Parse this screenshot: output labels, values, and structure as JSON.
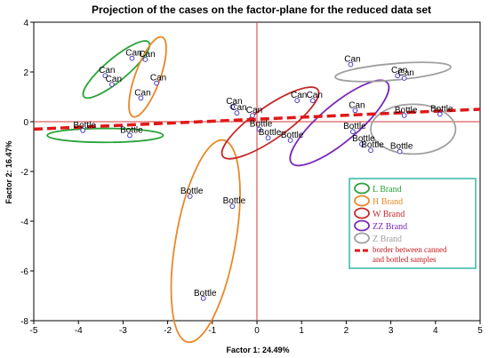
{
  "chart_data": {
    "type": "scatter",
    "title": "Projection of the cases on the factor-plane for the reduced data set",
    "xlabel": "Factor 1: 24.49%",
    "ylabel": "Factor 2: 16.47%",
    "xlim": [
      -5,
      5
    ],
    "ylim": [
      -8,
      4
    ],
    "x_ticks": [
      -5,
      -4,
      -3,
      -2,
      -1,
      0,
      1,
      2,
      3,
      4,
      5
    ],
    "y_ticks": [
      -8,
      -6,
      -4,
      -2,
      0,
      2,
      4
    ],
    "x_tick_labels": [
      "-5",
      "-4",
      "-3",
      "-2",
      "-1",
      "0",
      "1",
      "2",
      "3",
      "4",
      "5"
    ],
    "y_tick_labels": [
      "-8",
      "-6",
      "-4",
      "-2",
      "0",
      "2",
      "4"
    ],
    "grid": false,
    "zero_lines": {
      "x": 0,
      "y": 0,
      "color": "#d43a3a"
    },
    "point_color": "#4a3ec4",
    "series": [
      {
        "label": "L Brand",
        "color": "#2aa33a",
        "points": [
          {
            "x": -3.4,
            "y": 1.85,
            "label": "Can"
          },
          {
            "x": -3.25,
            "y": 1.5,
            "label": "Can"
          },
          {
            "x": -2.8,
            "y": 2.55,
            "label": "Can"
          },
          {
            "x": -3.9,
            "y": -0.35,
            "label": "Bottle"
          },
          {
            "x": -2.85,
            "y": -0.55,
            "label": "Bottle"
          }
        ],
        "ellipses": [
          {
            "cx": -3.15,
            "cy": 2.1,
            "rx": 0.95,
            "ry": 0.45,
            "angle_deg": -40
          },
          {
            "cx": -3.4,
            "cy": -0.55,
            "rx": 1.3,
            "ry": 0.28,
            "angle_deg": 0
          }
        ]
      },
      {
        "label": "H Brand",
        "color": "#e8882a",
        "points": [
          {
            "x": -2.5,
            "y": 2.5,
            "label": "Can"
          },
          {
            "x": -2.25,
            "y": 1.55,
            "label": "Can"
          },
          {
            "x": -2.6,
            "y": 0.95,
            "label": "Can"
          },
          {
            "x": -1.5,
            "y": -3.0,
            "label": "Bottle"
          },
          {
            "x": -0.55,
            "y": -3.4,
            "label": "Bottle"
          },
          {
            "x": -1.2,
            "y": -7.1,
            "label": "Bottle"
          }
        ],
        "ellipses": [
          {
            "cx": -2.45,
            "cy": 1.8,
            "rx": 0.95,
            "ry": 0.5,
            "angle_deg": -70
          },
          {
            "cx": -1.15,
            "cy": -4.8,
            "rx": 2.3,
            "ry": 1.2,
            "angle_deg": -80
          }
        ]
      },
      {
        "label": "W Brand",
        "color": "#c42a2a",
        "points": [
          {
            "x": -0.55,
            "y": 0.6,
            "label": "Can"
          },
          {
            "x": -0.45,
            "y": 0.35,
            "label": "Can"
          },
          {
            "x": -0.1,
            "y": 0.25,
            "label": "Can"
          },
          {
            "x": 0.05,
            "y": -0.3,
            "label": "Bottle"
          },
          {
            "x": 0.25,
            "y": -0.65,
            "label": "Bottle"
          },
          {
            "x": 0.75,
            "y": -0.75,
            "label": "Bottle"
          }
        ],
        "ellipses": [
          {
            "cx": 0.3,
            "cy": -0.05,
            "rx": 1.3,
            "ry": 0.65,
            "angle_deg": -35
          }
        ]
      },
      {
        "label": "ZZ Brand",
        "color": "#7a2ab8",
        "points": [
          {
            "x": 0.9,
            "y": 0.85,
            "label": "Can"
          },
          {
            "x": 1.25,
            "y": 0.85,
            "label": "Can"
          },
          {
            "x": 2.2,
            "y": 0.45,
            "label": "Can"
          },
          {
            "x": 2.15,
            "y": -0.4,
            "label": "Bottle"
          },
          {
            "x": 2.35,
            "y": -0.9,
            "label": "Bottle"
          },
          {
            "x": 2.55,
            "y": -1.15,
            "label": "Bottle"
          }
        ],
        "ellipses": [
          {
            "cx": 1.85,
            "cy": -0.05,
            "rx": 1.4,
            "ry": 0.75,
            "angle_deg": -40
          }
        ]
      },
      {
        "label": "Z Brand",
        "color": "#a0a0a0",
        "points": [
          {
            "x": 2.1,
            "y": 2.3,
            "label": "Can"
          },
          {
            "x": 3.15,
            "y": 1.85,
            "label": "Can"
          },
          {
            "x": 3.3,
            "y": 1.75,
            "label": "Can"
          },
          {
            "x": 3.3,
            "y": 0.25,
            "label": "Bottle"
          },
          {
            "x": 4.1,
            "y": 0.3,
            "label": "Bottle"
          },
          {
            "x": 3.2,
            "y": -1.2,
            "label": "Bottle"
          }
        ],
        "ellipses": [
          {
            "cx": 3.05,
            "cy": 2.0,
            "rx": 1.3,
            "ry": 0.33,
            "angle_deg": -5
          },
          {
            "cx": 3.5,
            "cy": -0.3,
            "rx": 0.95,
            "ry": 1.0,
            "angle_deg": 0
          }
        ]
      }
    ],
    "border_line": {
      "label": "border between canned and bottled samples",
      "color": "#e01818",
      "from": {
        "x": -5,
        "y": -0.3
      },
      "to": {
        "x": 5,
        "y": 0.5
      }
    },
    "legend": {
      "placement": "bottom-right",
      "entries": [
        "L Brand",
        "H Brand",
        "W Brand",
        "ZZ Brand",
        "Z Brand"
      ],
      "border_label_line1": "border between canned",
      "border_label_line2": "and bottled samples"
    }
  }
}
